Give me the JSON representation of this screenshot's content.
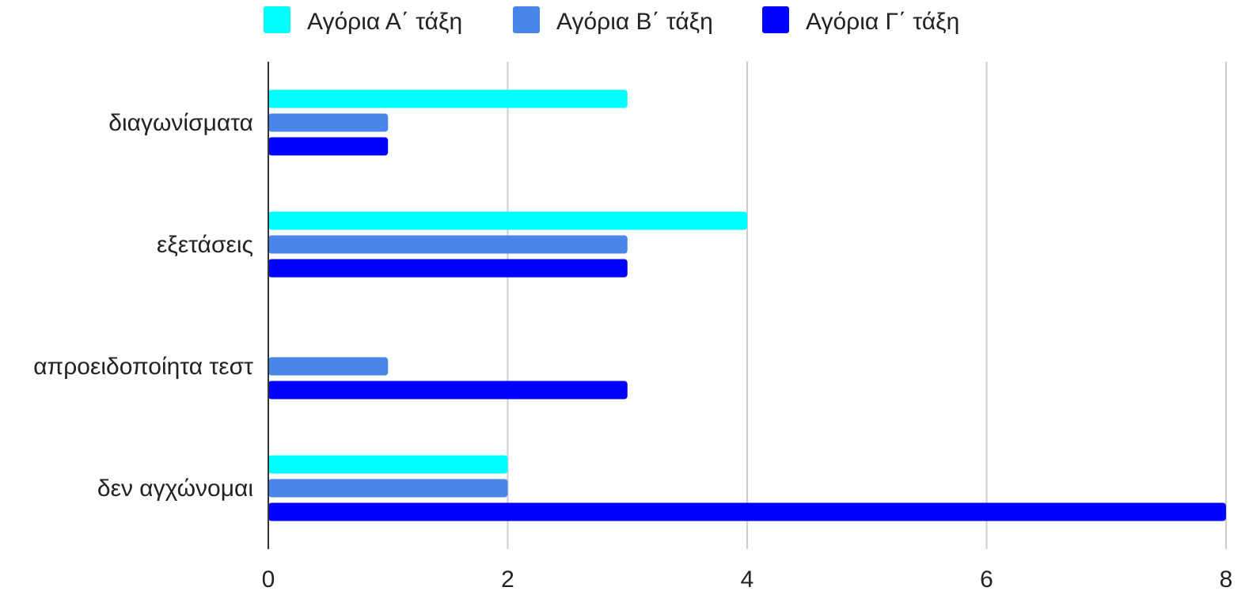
{
  "chart_data": {
    "type": "bar",
    "orientation": "horizontal",
    "categories": [
      "διαγωνίσματα",
      "εξετάσεις",
      "απροειδοποίητα τεστ",
      "δεν αγχώνομαι"
    ],
    "series": [
      {
        "name": "Αγόρια Α΄ τάξη",
        "color": "#00ffff",
        "values": [
          3,
          4,
          0,
          2
        ]
      },
      {
        "name": "Αγόρια Β΄ τάξη",
        "color": "#4a86e8",
        "values": [
          1,
          3,
          1,
          2
        ]
      },
      {
        "name": "Αγόρια Γ΄ τάξη",
        "color": "#0000ff",
        "values": [
          1,
          3,
          3,
          8
        ]
      }
    ],
    "xlim": [
      0,
      8
    ],
    "xticks": [
      0,
      2,
      4,
      6,
      8
    ],
    "title": "",
    "xlabel": "",
    "ylabel": "",
    "grid": true,
    "legend_position": "top-center"
  }
}
